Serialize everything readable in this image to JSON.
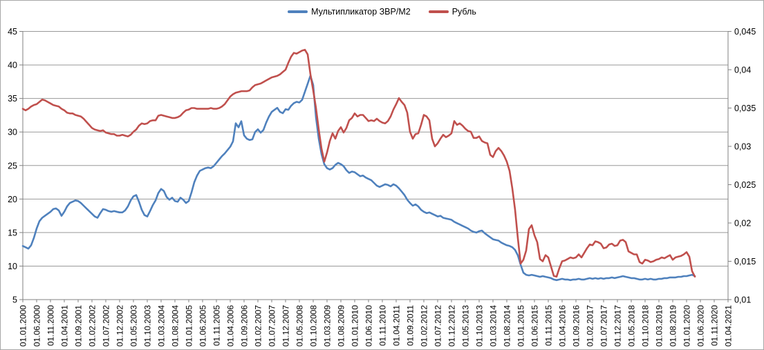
{
  "chart_data": {
    "type": "line",
    "title": "",
    "legend_position": "top",
    "legend": [
      "Мультипликатор ЗВР/М2",
      "Рубль"
    ],
    "grid": "horizontal-only",
    "x_axis": {
      "start_month": "01.2000",
      "frequency": "monthly",
      "tick_interval_months": 5,
      "tick_labels": [
        "01.01.2000",
        "01.06.2000",
        "01.11.2000",
        "01.04.2001",
        "01.09.2001",
        "01.02.2002",
        "01.07.2002",
        "01.12.2002",
        "01.05.2003",
        "01.10.2003",
        "01.03.2004",
        "01.08.2004",
        "01.01.2005",
        "01.06.2005",
        "01.11.2005",
        "01.04.2006",
        "01.09.2006",
        "01.02.2007",
        "01.07.2007",
        "01.12.2007",
        "01.05.2008",
        "01.10.2008",
        "01.03.2009",
        "01.08.2009",
        "01.01.2010",
        "01.06.2010",
        "01.11.2010",
        "01.04.2011",
        "01.09.2011",
        "01.02.2012",
        "01.07.2012",
        "01.12.2012",
        "01.05.2013",
        "01.10.2013",
        "01.03.2014",
        "01.08.2014",
        "01.01.2015",
        "01.06.2015",
        "01.11.2015",
        "01.04.2016",
        "01.09.2016",
        "01.02.2017",
        "01.07.2017",
        "01.12.2017",
        "01.05.2018",
        "01.10.2018",
        "01.03.2019",
        "01.08.2019",
        "01.01.2020",
        "01.06.2020",
        "01.11.2020",
        "01.04.2021"
      ]
    },
    "left_axis": {
      "min": 5,
      "max": 45,
      "step": 5,
      "ticks": [
        5,
        10,
        15,
        20,
        25,
        30,
        35,
        40,
        45
      ],
      "tick_labels": [
        "5",
        "10",
        "15",
        "20",
        "25",
        "30",
        "35",
        "40",
        "45"
      ]
    },
    "right_axis": {
      "min": 0.01,
      "max": 0.045,
      "step": 0.005,
      "ticks": [
        0.01,
        0.015,
        0.02,
        0.025,
        0.03,
        0.035,
        0.04,
        0.045
      ],
      "tick_labels": [
        "0,01",
        "0,015",
        "0,02",
        "0,025",
        "0,03",
        "0,035",
        "0,04",
        "0,045"
      ]
    },
    "series": [
      {
        "name": "Мультипликатор ЗВР/М2",
        "axis": "left",
        "color": "#4F81BD",
        "values": [
          13.0,
          12.8,
          12.6,
          13.1,
          14.2,
          15.6,
          16.7,
          17.2,
          17.5,
          17.8,
          18.1,
          18.5,
          18.6,
          18.3,
          17.5,
          18.1,
          18.9,
          19.4,
          19.6,
          19.8,
          19.7,
          19.4,
          19.0,
          18.6,
          18.2,
          17.8,
          17.4,
          17.2,
          17.9,
          18.5,
          18.4,
          18.2,
          18.1,
          18.2,
          18.1,
          18.0,
          18.0,
          18.3,
          18.9,
          19.8,
          20.4,
          20.6,
          19.6,
          18.4,
          17.6,
          17.4,
          18.2,
          19.1,
          19.8,
          20.9,
          21.5,
          21.2,
          20.3,
          19.9,
          20.2,
          19.7,
          19.6,
          20.2,
          19.9,
          19.4,
          19.7,
          21.0,
          22.5,
          23.5,
          24.2,
          24.4,
          24.6,
          24.7,
          24.6,
          24.9,
          25.4,
          25.9,
          26.4,
          26.8,
          27.3,
          27.8,
          28.6,
          31.3,
          30.7,
          31.6,
          29.5,
          29.0,
          28.8,
          28.9,
          30.0,
          30.4,
          29.9,
          30.3,
          31.4,
          32.3,
          33.0,
          33.3,
          33.6,
          33.0,
          32.8,
          33.4,
          33.3,
          33.9,
          34.3,
          34.5,
          34.4,
          34.8,
          36.0,
          37.2,
          38.4,
          37.0,
          32.2,
          29.0,
          26.7,
          25.2,
          24.6,
          24.4,
          24.6,
          25.1,
          25.4,
          25.2,
          24.9,
          24.3,
          23.9,
          24.1,
          24.0,
          23.7,
          23.4,
          23.5,
          23.2,
          23.0,
          22.8,
          22.4,
          22.0,
          21.8,
          22.0,
          22.2,
          22.1,
          21.9,
          22.2,
          22.0,
          21.6,
          21.1,
          20.6,
          19.9,
          19.4,
          19.0,
          19.2,
          18.9,
          18.4,
          18.1,
          17.9,
          18.0,
          17.8,
          17.6,
          17.4,
          17.5,
          17.2,
          17.1,
          17.0,
          16.9,
          16.6,
          16.4,
          16.2,
          16.0,
          15.8,
          15.6,
          15.3,
          15.1,
          15.0,
          15.2,
          15.3,
          14.9,
          14.6,
          14.3,
          14.0,
          13.9,
          13.8,
          13.5,
          13.3,
          13.1,
          13.0,
          12.8,
          12.4,
          11.6,
          10.2,
          9.0,
          8.7,
          8.6,
          8.7,
          8.6,
          8.5,
          8.4,
          8.5,
          8.4,
          8.3,
          8.2,
          8.0,
          7.9,
          8.0,
          8.1,
          8.0,
          8.0,
          7.9,
          8.0,
          8.0,
          8.1,
          8.0,
          8.0,
          8.1,
          8.2,
          8.1,
          8.2,
          8.1,
          8.2,
          8.1,
          8.2,
          8.2,
          8.3,
          8.2,
          8.3,
          8.4,
          8.5,
          8.4,
          8.3,
          8.2,
          8.2,
          8.1,
          8.0,
          8.0,
          8.1,
          8.0,
          8.1,
          8.0,
          8.0,
          8.1,
          8.1,
          8.2,
          8.2,
          8.3,
          8.3,
          8.3,
          8.4,
          8.4,
          8.5,
          8.5,
          8.6,
          8.7,
          8.5
        ]
      },
      {
        "name": "Рубль",
        "axis": "right",
        "color": "#C0504D",
        "values": [
          0.0349,
          0.0347,
          0.0349,
          0.0352,
          0.0354,
          0.0355,
          0.0358,
          0.0361,
          0.036,
          0.0358,
          0.0356,
          0.0354,
          0.0353,
          0.0352,
          0.0349,
          0.0347,
          0.0344,
          0.0343,
          0.0343,
          0.0341,
          0.034,
          0.0339,
          0.0336,
          0.0332,
          0.0328,
          0.0324,
          0.0322,
          0.0321,
          0.032,
          0.0321,
          0.0318,
          0.0317,
          0.0316,
          0.0316,
          0.0314,
          0.0314,
          0.0315,
          0.0314,
          0.0313,
          0.0315,
          0.0319,
          0.0322,
          0.0327,
          0.033,
          0.0329,
          0.033,
          0.0333,
          0.0334,
          0.0334,
          0.034,
          0.0341,
          0.034,
          0.0339,
          0.0338,
          0.0337,
          0.0337,
          0.0338,
          0.034,
          0.0344,
          0.0347,
          0.0348,
          0.035,
          0.035,
          0.0349,
          0.0349,
          0.0349,
          0.0349,
          0.0349,
          0.035,
          0.0349,
          0.0349,
          0.035,
          0.0352,
          0.0355,
          0.036,
          0.0365,
          0.0368,
          0.037,
          0.0371,
          0.0372,
          0.0372,
          0.0372,
          0.0373,
          0.0377,
          0.038,
          0.0381,
          0.0382,
          0.0384,
          0.0386,
          0.0388,
          0.039,
          0.0391,
          0.0392,
          0.0394,
          0.0397,
          0.04,
          0.0409,
          0.0417,
          0.0422,
          0.0421,
          0.0423,
          0.0425,
          0.0426,
          0.042,
          0.0394,
          0.0373,
          0.035,
          0.0322,
          0.0297,
          0.028,
          0.0292,
          0.0307,
          0.0317,
          0.031,
          0.032,
          0.0325,
          0.0318,
          0.0324,
          0.0334,
          0.0337,
          0.0343,
          0.0339,
          0.0341,
          0.0341,
          0.0337,
          0.0333,
          0.0334,
          0.0333,
          0.0336,
          0.0333,
          0.0331,
          0.033,
          0.0333,
          0.0339,
          0.0348,
          0.0355,
          0.0363,
          0.0358,
          0.0354,
          0.0344,
          0.0319,
          0.031,
          0.0316,
          0.0317,
          0.0328,
          0.0341,
          0.0339,
          0.0334,
          0.031,
          0.03,
          0.0304,
          0.031,
          0.0315,
          0.0312,
          0.0314,
          0.0317,
          0.0333,
          0.0328,
          0.033,
          0.0327,
          0.0323,
          0.032,
          0.0319,
          0.0311,
          0.0311,
          0.0313,
          0.0307,
          0.0305,
          0.0304,
          0.0289,
          0.0286,
          0.0294,
          0.0298,
          0.0294,
          0.0288,
          0.028,
          0.0268,
          0.0245,
          0.0217,
          0.018,
          0.0147,
          0.0152,
          0.0164,
          0.0192,
          0.0197,
          0.0184,
          0.0175,
          0.0153,
          0.015,
          0.0158,
          0.0155,
          0.0143,
          0.0131,
          0.013,
          0.0141,
          0.015,
          0.0151,
          0.0153,
          0.0155,
          0.0154,
          0.0155,
          0.0159,
          0.0155,
          0.0161,
          0.0167,
          0.0172,
          0.0171,
          0.0176,
          0.0175,
          0.0173,
          0.0167,
          0.0168,
          0.0172,
          0.0173,
          0.017,
          0.0171,
          0.0177,
          0.0178,
          0.0175,
          0.0163,
          0.0161,
          0.0159,
          0.0159,
          0.0149,
          0.0147,
          0.0152,
          0.0151,
          0.0149,
          0.015,
          0.0152,
          0.0153,
          0.0155,
          0.0154,
          0.0156,
          0.0158,
          0.0152,
          0.0155,
          0.0156,
          0.0157,
          0.0159,
          0.0162,
          0.0156,
          0.0137,
          0.013
        ]
      }
    ],
    "colors": {
      "gridline": "#999999",
      "axis": "#808080",
      "text": "#000000",
      "frame_border": "#a6a6a6"
    }
  }
}
